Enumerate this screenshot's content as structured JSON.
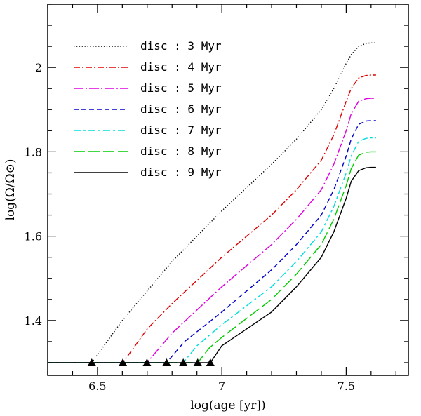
{
  "chart_data": {
    "type": "line",
    "title": "",
    "xlabel": "log(age [yr])",
    "ylabel": "log(Ω/Ω⊙)",
    "xlim": [
      6.3,
      7.75
    ],
    "ylim": [
      1.27,
      2.15
    ],
    "x_ticks": [
      {
        "value": 6.5,
        "label": "6.5"
      },
      {
        "value": 7.0,
        "label": "7"
      },
      {
        "value": 7.5,
        "label": "7.5"
      }
    ],
    "y_ticks": [
      {
        "value": 1.4,
        "label": "1.4"
      },
      {
        "value": 1.6,
        "label": "1.6"
      },
      {
        "value": 1.8,
        "label": "1.8"
      },
      {
        "value": 2.0,
        "label": "2"
      }
    ],
    "legend_position": "top-left",
    "series": [
      {
        "name": "disc : 3 Myr",
        "color": "#000000",
        "dash": "dotted",
        "x": [
          6.3,
          6.477,
          6.6,
          6.8,
          7.0,
          7.2,
          7.3,
          7.4,
          7.45,
          7.5,
          7.52,
          7.55,
          7.58,
          7.6,
          7.62
        ],
        "y": [
          1.3,
          1.3,
          1.4,
          1.54,
          1.66,
          1.77,
          1.83,
          1.9,
          1.95,
          2.01,
          2.03,
          2.05,
          2.057,
          2.058,
          2.058
        ]
      },
      {
        "name": "disc : 4 Myr",
        "color": "#dd0000",
        "dash": "dashdot",
        "x": [
          6.3,
          6.602,
          6.7,
          6.8,
          7.0,
          7.2,
          7.3,
          7.4,
          7.45,
          7.5,
          7.52,
          7.55,
          7.58,
          7.6,
          7.62
        ],
        "y": [
          1.3,
          1.3,
          1.38,
          1.44,
          1.55,
          1.65,
          1.71,
          1.78,
          1.84,
          1.92,
          1.95,
          1.975,
          1.981,
          1.982,
          1.982
        ]
      },
      {
        "name": "disc : 5 Myr",
        "color": "#dd00dd",
        "dash": "longdashdot",
        "x": [
          6.3,
          6.699,
          6.8,
          7.0,
          7.2,
          7.3,
          7.4,
          7.45,
          7.5,
          7.52,
          7.55,
          7.58,
          7.6,
          7.62
        ],
        "y": [
          1.3,
          1.3,
          1.37,
          1.48,
          1.58,
          1.64,
          1.71,
          1.77,
          1.85,
          1.89,
          1.92,
          1.926,
          1.927,
          1.927
        ]
      },
      {
        "name": "disc : 6 Myr",
        "color": "#0000cc",
        "dash": "dashed",
        "x": [
          6.3,
          6.778,
          6.85,
          7.0,
          7.2,
          7.3,
          7.4,
          7.45,
          7.5,
          7.52,
          7.55,
          7.58,
          7.6,
          7.62
        ],
        "y": [
          1.3,
          1.3,
          1.35,
          1.42,
          1.52,
          1.58,
          1.65,
          1.71,
          1.79,
          1.83,
          1.865,
          1.873,
          1.874,
          1.874
        ]
      },
      {
        "name": "disc : 7 Myr",
        "color": "#00dddd",
        "dash": "dashdotlong",
        "x": [
          6.3,
          6.845,
          6.9,
          7.0,
          7.2,
          7.3,
          7.4,
          7.45,
          7.5,
          7.52,
          7.55,
          7.58,
          7.6,
          7.62
        ],
        "y": [
          1.3,
          1.3,
          1.34,
          1.39,
          1.48,
          1.54,
          1.61,
          1.67,
          1.75,
          1.79,
          1.825,
          1.832,
          1.833,
          1.833
        ]
      },
      {
        "name": "disc : 8 Myr",
        "color": "#00cc00",
        "dash": "longdash",
        "x": [
          6.3,
          6.903,
          6.95,
          7.0,
          7.2,
          7.3,
          7.4,
          7.45,
          7.5,
          7.52,
          7.55,
          7.58,
          7.6,
          7.62
        ],
        "y": [
          1.3,
          1.3,
          1.335,
          1.36,
          1.45,
          1.51,
          1.58,
          1.64,
          1.72,
          1.76,
          1.792,
          1.799,
          1.8,
          1.8
        ]
      },
      {
        "name": "disc : 9 Myr",
        "color": "#000000",
        "dash": "solid",
        "x": [
          6.3,
          6.954,
          7.0,
          7.2,
          7.3,
          7.4,
          7.45,
          7.5,
          7.52,
          7.55,
          7.58,
          7.6,
          7.62
        ],
        "y": [
          1.3,
          1.3,
          1.34,
          1.42,
          1.48,
          1.55,
          1.61,
          1.69,
          1.73,
          1.755,
          1.762,
          1.763,
          1.763
        ]
      }
    ],
    "markers": {
      "shape": "triangle",
      "x": [
        6.477,
        6.602,
        6.699,
        6.778,
        6.845,
        6.903,
        6.954
      ],
      "y": [
        1.3,
        1.3,
        1.3,
        1.3,
        1.3,
        1.3,
        1.3
      ]
    }
  }
}
